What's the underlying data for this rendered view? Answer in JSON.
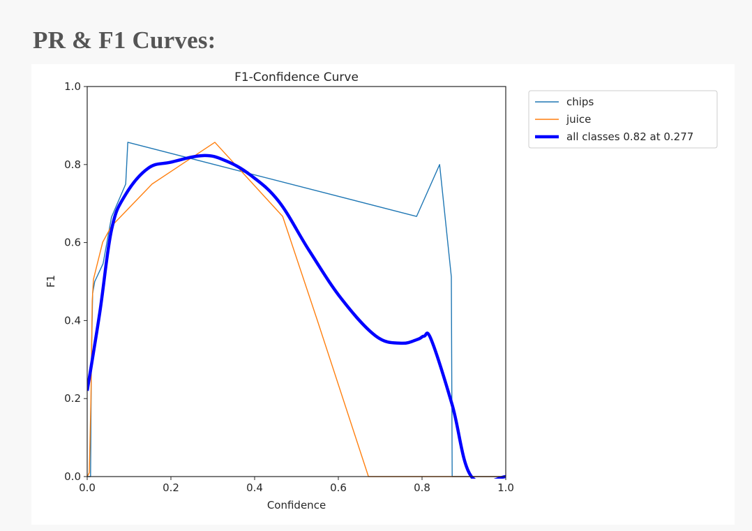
{
  "page": {
    "heading": "PR & F1 Curves:"
  },
  "chart_data": {
    "type": "line",
    "title": "F1-Confidence Curve",
    "xlabel": "Confidence",
    "ylabel": "F1",
    "xlim": [
      0.0,
      1.0
    ],
    "ylim": [
      0.0,
      1.0
    ],
    "xticks": [
      "0.0",
      "0.2",
      "0.4",
      "0.6",
      "0.8",
      "1.0"
    ],
    "yticks": [
      "0.0",
      "0.2",
      "0.4",
      "0.6",
      "0.8",
      "1.0"
    ],
    "grid": false,
    "legend_position": "outside upper right",
    "series": [
      {
        "name": "chips",
        "color": "#1f77b4",
        "width": 1.4,
        "points": [
          [
            0.0,
            0.0
          ],
          [
            0.008,
            0.0
          ],
          [
            0.01,
            0.3
          ],
          [
            0.013,
            0.47
          ],
          [
            0.018,
            0.5
          ],
          [
            0.038,
            0.546
          ],
          [
            0.058,
            0.665
          ],
          [
            0.092,
            0.75
          ],
          [
            0.097,
            0.857
          ],
          [
            0.787,
            0.667
          ],
          [
            0.842,
            0.8
          ],
          [
            0.87,
            0.512
          ],
          [
            0.872,
            0.0
          ],
          [
            1.0,
            0.0
          ]
        ]
      },
      {
        "name": "juice",
        "color": "#ff7f0e",
        "width": 1.4,
        "points": [
          [
            0.0,
            0.0
          ],
          [
            0.005,
            0.01
          ],
          [
            0.009,
            0.2
          ],
          [
            0.012,
            0.45
          ],
          [
            0.015,
            0.506
          ],
          [
            0.037,
            0.601
          ],
          [
            0.058,
            0.642
          ],
          [
            0.155,
            0.75
          ],
          [
            0.305,
            0.857
          ],
          [
            0.467,
            0.667
          ],
          [
            0.55,
            0.4
          ],
          [
            0.672,
            0.0
          ],
          [
            1.0,
            0.0
          ]
        ]
      },
      {
        "name": "all classes 0.82 at 0.277",
        "color": "#0000ff",
        "width": 4.5,
        "smooth": true,
        "points": [
          [
            0.0,
            0.22
          ],
          [
            0.03,
            0.42
          ],
          [
            0.058,
            0.632
          ],
          [
            0.09,
            0.72
          ],
          [
            0.145,
            0.79
          ],
          [
            0.2,
            0.806
          ],
          [
            0.277,
            0.823
          ],
          [
            0.33,
            0.81
          ],
          [
            0.39,
            0.773
          ],
          [
            0.458,
            0.705
          ],
          [
            0.53,
            0.58
          ],
          [
            0.608,
            0.455
          ],
          [
            0.69,
            0.36
          ],
          [
            0.75,
            0.342
          ],
          [
            0.79,
            0.352
          ],
          [
            0.805,
            0.36
          ],
          [
            0.822,
            0.351
          ],
          [
            0.872,
            0.184
          ],
          [
            0.918,
            0.0
          ],
          [
            1.0,
            0.0
          ]
        ]
      }
    ],
    "annotation": "all classes 0.82 at 0.277"
  }
}
